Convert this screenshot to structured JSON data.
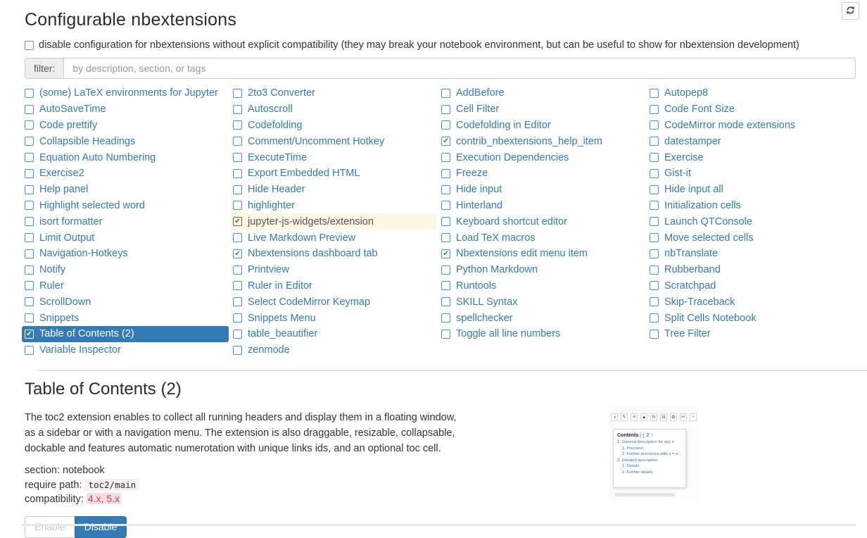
{
  "page": {
    "title": "Configurable nbextensions",
    "disable_config_label": "disable configuration for nbextensions without explicit compatibility (they may break your notebook environment, but can be useful to show for nbextension development)"
  },
  "filter": {
    "label": "filter:",
    "placeholder": "by description, section, or tags"
  },
  "colors": {
    "accent": "#337ab7",
    "selected_bg": "#337ab7",
    "highlight_bg": "#fcf8e3",
    "compat_text": "#c0485c",
    "code_bg": "#f7f1f3"
  },
  "extensions": {
    "columns": [
      [
        {
          "label": "(some) LaTeX environments for Jupyter",
          "checked": false
        },
        {
          "label": "AutoSaveTime",
          "checked": false
        },
        {
          "label": "Code prettify",
          "checked": false
        },
        {
          "label": "Collapsible Headings",
          "checked": false
        },
        {
          "label": "Equation Auto Numbering",
          "checked": false
        },
        {
          "label": "Exercise2",
          "checked": false
        },
        {
          "label": "Help panel",
          "checked": false
        },
        {
          "label": "Highlight selected word",
          "checked": false
        },
        {
          "label": "isort formatter",
          "checked": false
        },
        {
          "label": "Limit Output",
          "checked": false
        },
        {
          "label": "Navigation-Hotkeys",
          "checked": false
        },
        {
          "label": "Notify",
          "checked": false
        },
        {
          "label": "Ruler",
          "checked": false
        },
        {
          "label": "ScrollDown",
          "checked": false
        },
        {
          "label": "Snippets",
          "checked": false
        },
        {
          "label": "Table of Contents (2)",
          "checked": true,
          "selected": true
        },
        {
          "label": "Variable Inspector",
          "checked": false
        }
      ],
      [
        {
          "label": "2to3 Converter",
          "checked": false
        },
        {
          "label": "Autoscroll",
          "checked": false
        },
        {
          "label": "Codefolding",
          "checked": false
        },
        {
          "label": "Comment/Uncomment Hotkey",
          "checked": false
        },
        {
          "label": "ExecuteTime",
          "checked": false
        },
        {
          "label": "Export Embedded HTML",
          "checked": false
        },
        {
          "label": "Hide Header",
          "checked": false
        },
        {
          "label": "highlighter",
          "checked": false
        },
        {
          "label": "jupyter-js-widgets/extension",
          "checked": true,
          "highlighted": true
        },
        {
          "label": "Live Markdown Preview",
          "checked": false
        },
        {
          "label": "Nbextensions dashboard tab",
          "checked": true
        },
        {
          "label": "Printview",
          "checked": false
        },
        {
          "label": "Ruler in Editor",
          "checked": false
        },
        {
          "label": "Select CodeMirror Keymap",
          "checked": false
        },
        {
          "label": "Snippets Menu",
          "checked": false
        },
        {
          "label": "table_beautifier",
          "checked": false
        },
        {
          "label": "zenmode",
          "checked": false
        }
      ],
      [
        {
          "label": "AddBefore",
          "checked": false
        },
        {
          "label": "Cell Filter",
          "checked": false
        },
        {
          "label": "Codefolding in Editor",
          "checked": false
        },
        {
          "label": "contrib_nbextensions_help_item",
          "checked": true
        },
        {
          "label": "Execution Dependencies",
          "checked": false
        },
        {
          "label": "Freeze",
          "checked": false
        },
        {
          "label": "Hide input",
          "checked": false
        },
        {
          "label": "Hinterland",
          "checked": false
        },
        {
          "label": "Keyboard shortcut editor",
          "checked": false
        },
        {
          "label": "Load TeX macros",
          "checked": false
        },
        {
          "label": "Nbextensions edit menu item",
          "checked": true
        },
        {
          "label": "Python Markdown",
          "checked": false
        },
        {
          "label": "Runtools",
          "checked": false
        },
        {
          "label": "SKILL Syntax",
          "checked": false
        },
        {
          "label": "spellchecker",
          "checked": false
        },
        {
          "label": "Toggle all line numbers",
          "checked": false
        }
      ],
      [
        {
          "label": "Autopep8",
          "checked": false
        },
        {
          "label": "Code Font Size",
          "checked": false
        },
        {
          "label": "CodeMirror mode extensions",
          "checked": false
        },
        {
          "label": "datestamper",
          "checked": false
        },
        {
          "label": "Exercise",
          "checked": false
        },
        {
          "label": "Gist-it",
          "checked": false
        },
        {
          "label": "Hide input all",
          "checked": false
        },
        {
          "label": "Initialization cells",
          "checked": false
        },
        {
          "label": "Launch QTConsole",
          "checked": false
        },
        {
          "label": "Move selected cells",
          "checked": false
        },
        {
          "label": "nbTranslate",
          "checked": false
        },
        {
          "label": "Rubberband",
          "checked": false
        },
        {
          "label": "Scratchpad",
          "checked": false
        },
        {
          "label": "Skip-Traceback",
          "checked": false
        },
        {
          "label": "Split Cells Notebook",
          "checked": false
        },
        {
          "label": "Tree Filter",
          "checked": false
        }
      ]
    ]
  },
  "details": {
    "title": "Table of Contents (2)",
    "description": "The toc2 extension enables to collect all running headers and display them in a floating window, as a sidebar or with a navigation menu. The extension is also draggable, resizable, collapsable, dockable and features automatic numerotation with unique links ids, and an optional toc cell.",
    "section_label": "section:",
    "section_value": "notebook",
    "require_label": "require path:",
    "require_value": "toc2/main",
    "compat_label": "compatibility:",
    "compat_value": "4.x, 5.x",
    "enable_label": "Enable",
    "disable_label": "Disable"
  },
  "thumbnail": {
    "contents_title": "Contents",
    "contents_controls": "[-] ⇵ ↑",
    "toolbar_icons": [
      "◑",
      "✎",
      "≡",
      "▲",
      "↻",
      "⊟",
      "⚙",
      "✂",
      "◔"
    ],
    "toc_lines": [
      {
        "num": "1.",
        "text": "General description for any x",
        "indent": false
      },
      {
        "num": "1.",
        "text": "Precision",
        "indent": true
      },
      {
        "num": "2.",
        "text": "Further precisions with x = a",
        "indent": true
      },
      {
        "num": "2.",
        "text": "Detailed description",
        "indent": false
      },
      {
        "num": "1.",
        "text": "Details",
        "indent": true
      },
      {
        "num": "2.",
        "text": "Further details",
        "indent": true
      }
    ]
  }
}
